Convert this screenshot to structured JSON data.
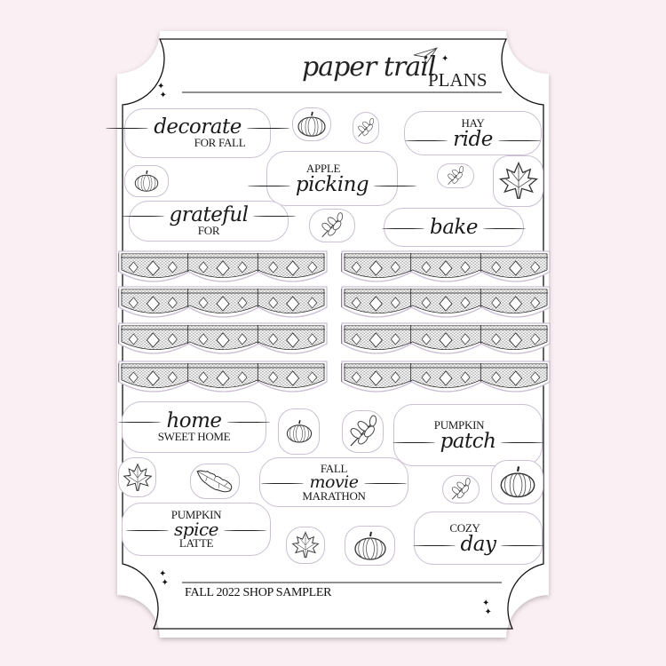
{
  "brand": {
    "script": "paper trail",
    "caps": "PLANS"
  },
  "footer": {
    "title": "FALL 2022 SHOP SAMPLER"
  },
  "colors": {
    "background": "#faeff3",
    "sheet": "#ffffff",
    "outline": "#cbbfd3",
    "ink": "#1a1a1a"
  },
  "stickers": {
    "decorate": {
      "script": "decorate",
      "caps": "FOR FALL"
    },
    "hay": {
      "caps": "HAY",
      "script": "ride"
    },
    "apple": {
      "caps": "APPLE",
      "script": "picking"
    },
    "grateful": {
      "script": "grateful",
      "caps": "FOR"
    },
    "bake": {
      "script": "bake"
    },
    "home": {
      "script": "home",
      "caps": "SWEET HOME"
    },
    "patch": {
      "caps": "PUMPKIN",
      "script": "patch"
    },
    "movie": {
      "caps": "FALL",
      "script": "movie",
      "caps2": "MARATHON"
    },
    "spice": {
      "caps": "PUMPKIN",
      "script": "spice",
      "caps2": "LATTE"
    },
    "cozy": {
      "caps": "COZY",
      "script": "day"
    }
  },
  "illustrations": [
    "pumpkin-icon",
    "leaf-icon",
    "maple-leaf-icon",
    "oak-leaf-icon",
    "sparkle-icon"
  ],
  "lace_strips": {
    "left": 4,
    "right": 4
  }
}
